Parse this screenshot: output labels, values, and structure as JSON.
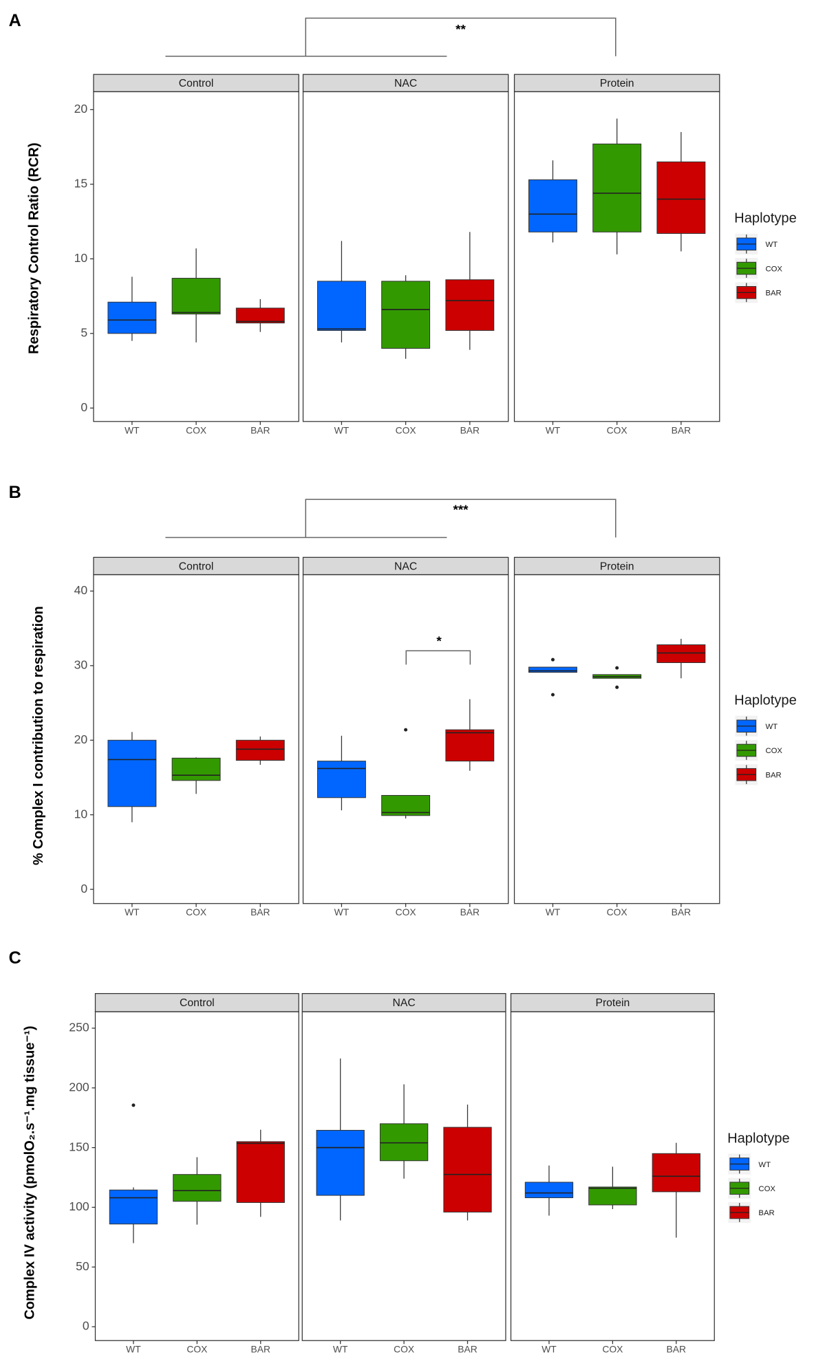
{
  "chart_data": [
    {
      "type": "box",
      "label": "A",
      "ylabel": "Respiratory Control Ratio (RCR)",
      "facets": [
        "Control",
        "NAC",
        "Protein"
      ],
      "legend_title": "Haplotype",
      "ylim": [
        -0.9,
        21.2
      ],
      "yticks": [
        0,
        5,
        10,
        15,
        20
      ],
      "annotations": [
        "**"
      ],
      "series": [
        {
          "name": "WT",
          "color": "#0066ff",
          "boxes": [
            {
              "low": 4.5,
              "q1": 5.0,
              "median": 5.9,
              "q3": 7.1,
              "high": 8.8,
              "outliers": []
            },
            {
              "low": 4.4,
              "q1": 5.2,
              "median": 5.3,
              "q3": 8.5,
              "high": 11.2,
              "outliers": []
            },
            {
              "low": 11.1,
              "q1": 11.8,
              "median": 13.0,
              "q3": 15.3,
              "high": 16.6,
              "outliers": []
            }
          ]
        },
        {
          "name": "COX",
          "color": "#339900",
          "boxes": [
            {
              "low": 4.4,
              "q1": 6.3,
              "median": 6.4,
              "q3": 8.7,
              "high": 10.7,
              "outliers": []
            },
            {
              "low": 3.3,
              "q1": 4.0,
              "median": 6.6,
              "q3": 8.5,
              "high": 8.9,
              "outliers": []
            },
            {
              "low": 10.3,
              "q1": 11.8,
              "median": 14.4,
              "q3": 17.7,
              "high": 19.4,
              "outliers": []
            }
          ]
        },
        {
          "name": "BAR",
          "color": "#cc0000",
          "boxes": [
            {
              "low": 5.1,
              "q1": 5.7,
              "median": 5.8,
              "q3": 6.7,
              "high": 7.3,
              "outliers": []
            },
            {
              "low": 3.9,
              "q1": 5.2,
              "median": 7.2,
              "q3": 8.6,
              "high": 11.8,
              "outliers": []
            },
            {
              "low": 10.5,
              "q1": 11.7,
              "median": 14.0,
              "q3": 16.5,
              "high": 18.5,
              "outliers": []
            }
          ]
        }
      ]
    },
    {
      "type": "box",
      "label": "B",
      "ylabel": "% Complex I contribution to respiration",
      "facets": [
        "Control",
        "NAC",
        "Protein"
      ],
      "legend_title": "Haplotype",
      "ylim": [
        -1.9,
        42.2
      ],
      "yticks": [
        0,
        10,
        20,
        30,
        40
      ],
      "annotations": [
        "***",
        "*"
      ],
      "series": [
        {
          "name": "WT",
          "color": "#0066ff",
          "boxes": [
            {
              "low": 9.0,
              "q1": 11.1,
              "median": 17.4,
              "q3": 20.0,
              "high": 21.1,
              "outliers": []
            },
            {
              "low": 10.6,
              "q1": 12.3,
              "median": 16.2,
              "q3": 17.2,
              "high": 20.6,
              "outliers": []
            },
            {
              "low": 29.1,
              "q1": 29.1,
              "median": 29.3,
              "q3": 29.8,
              "high": 29.8,
              "outliers": [
                30.8,
                26.1
              ]
            }
          ]
        },
        {
          "name": "COX",
          "color": "#339900",
          "boxes": [
            {
              "low": 12.8,
              "q1": 14.6,
              "median": 15.3,
              "q3": 17.6,
              "high": 17.7,
              "outliers": []
            },
            {
              "low": 9.5,
              "q1": 9.9,
              "median": 10.3,
              "q3": 12.6,
              "high": 12.6,
              "outliers": [
                21.4
              ]
            },
            {
              "low": 28.3,
              "q1": 28.3,
              "median": 28.5,
              "q3": 28.8,
              "high": 28.8,
              "outliers": [
                29.7,
                27.1
              ]
            }
          ]
        },
        {
          "name": "BAR",
          "color": "#cc0000",
          "boxes": [
            {
              "low": 16.7,
              "q1": 17.3,
              "median": 18.8,
              "q3": 20.0,
              "high": 20.5,
              "outliers": []
            },
            {
              "low": 15.9,
              "q1": 17.2,
              "median": 21.0,
              "q3": 21.4,
              "high": 25.5,
              "outliers": []
            },
            {
              "low": 28.3,
              "q1": 30.4,
              "median": 31.7,
              "q3": 32.8,
              "high": 33.6,
              "outliers": []
            }
          ]
        }
      ]
    },
    {
      "type": "box",
      "label": "C",
      "ylabel": "Complex IV activity (pmolO₂.s⁻¹.mg tissue⁻¹)",
      "facets": [
        "Control",
        "NAC",
        "Protein"
      ],
      "legend_title": "Haplotype",
      "ylim": [
        -11.6,
        263.8
      ],
      "yticks": [
        0,
        50,
        100,
        150,
        200,
        250
      ],
      "annotations": [],
      "series": [
        {
          "name": "WT",
          "color": "#0066ff",
          "boxes": [
            {
              "low": 70,
              "q1": 86,
              "median": 108,
              "q3": 114.5,
              "high": 116.7,
              "outliers": [
                185.5
              ]
            },
            {
              "low": 89,
              "q1": 110,
              "median": 150,
              "q3": 164.5,
              "high": 224.6,
              "outliers": []
            },
            {
              "low": 93,
              "q1": 108,
              "median": 112,
              "q3": 121,
              "high": 135,
              "outliers": []
            }
          ]
        },
        {
          "name": "COX",
          "color": "#339900",
          "boxes": [
            {
              "low": 85.5,
              "q1": 105,
              "median": 114,
              "q3": 127.5,
              "high": 142,
              "outliers": []
            },
            {
              "low": 124,
              "q1": 139,
              "median": 154,
              "q3": 170,
              "high": 203,
              "outliers": []
            },
            {
              "low": 98.5,
              "q1": 102,
              "median": 116,
              "q3": 117,
              "high": 134,
              "outliers": []
            }
          ]
        },
        {
          "name": "BAR",
          "color": "#cc0000",
          "boxes": [
            {
              "low": 92,
              "q1": 104,
              "median": 153.6,
              "q3": 155,
              "high": 165,
              "outliers": []
            },
            {
              "low": 89,
              "q1": 96,
              "median": 127.5,
              "q3": 167,
              "high": 186,
              "outliers": []
            },
            {
              "low": 74.6,
              "q1": 113,
              "median": 126,
              "q3": 145,
              "high": 154,
              "outliers": []
            }
          ]
        }
      ]
    }
  ]
}
